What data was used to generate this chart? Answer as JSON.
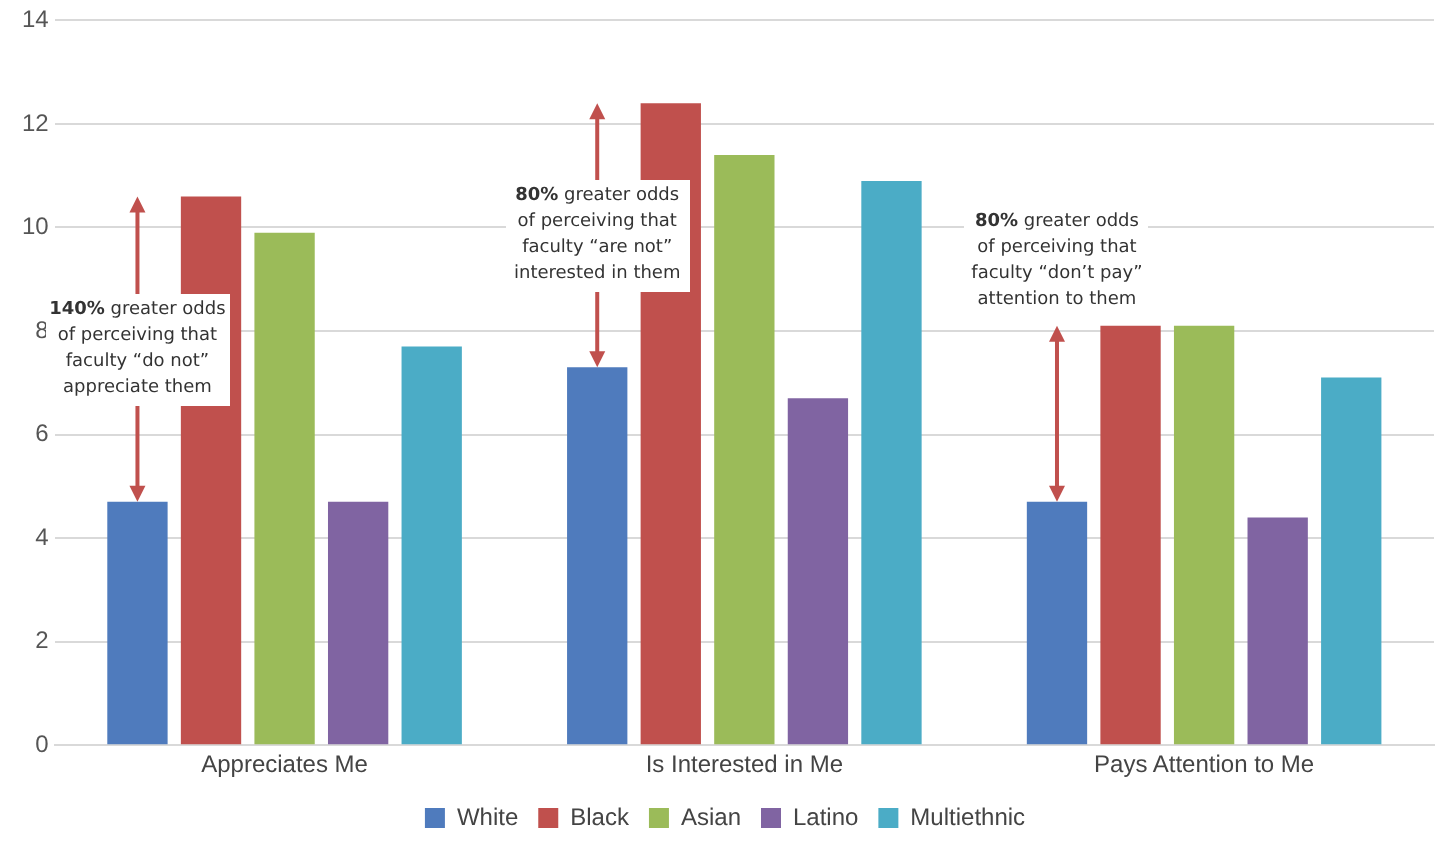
{
  "chart_data": {
    "type": "bar",
    "categories": [
      "Appreciates Me",
      "Is Interested in Me",
      "Pays Attention to Me"
    ],
    "series": [
      {
        "name": "White",
        "color": "#4f7bbd",
        "values": [
          4.7,
          7.3,
          4.7
        ]
      },
      {
        "name": "Black",
        "color": "#c0504d",
        "values": [
          10.6,
          12.4,
          8.1
        ]
      },
      {
        "name": "Asian",
        "color": "#9bbb59",
        "values": [
          9.9,
          11.4,
          8.1
        ]
      },
      {
        "name": "Latino",
        "color": "#8064a2",
        "values": [
          4.7,
          6.7,
          4.4
        ]
      },
      {
        "name": "Multiethnic",
        "color": "#4bacc6",
        "values": [
          7.7,
          10.9,
          7.1
        ]
      }
    ],
    "ylim": [
      0,
      14
    ],
    "yticks": [
      0,
      2,
      4,
      6,
      8,
      10,
      12,
      14
    ],
    "grid": "y",
    "legend": "bottom",
    "annotations": [
      "140% greater odds of perceiving that faculty “do not” appreciate them",
      "80% greater odds of perceiving that faculty  “are not” interested in them",
      "80% greater odds of perceiving that faculty “don’t pay” attention to them"
    ]
  }
}
